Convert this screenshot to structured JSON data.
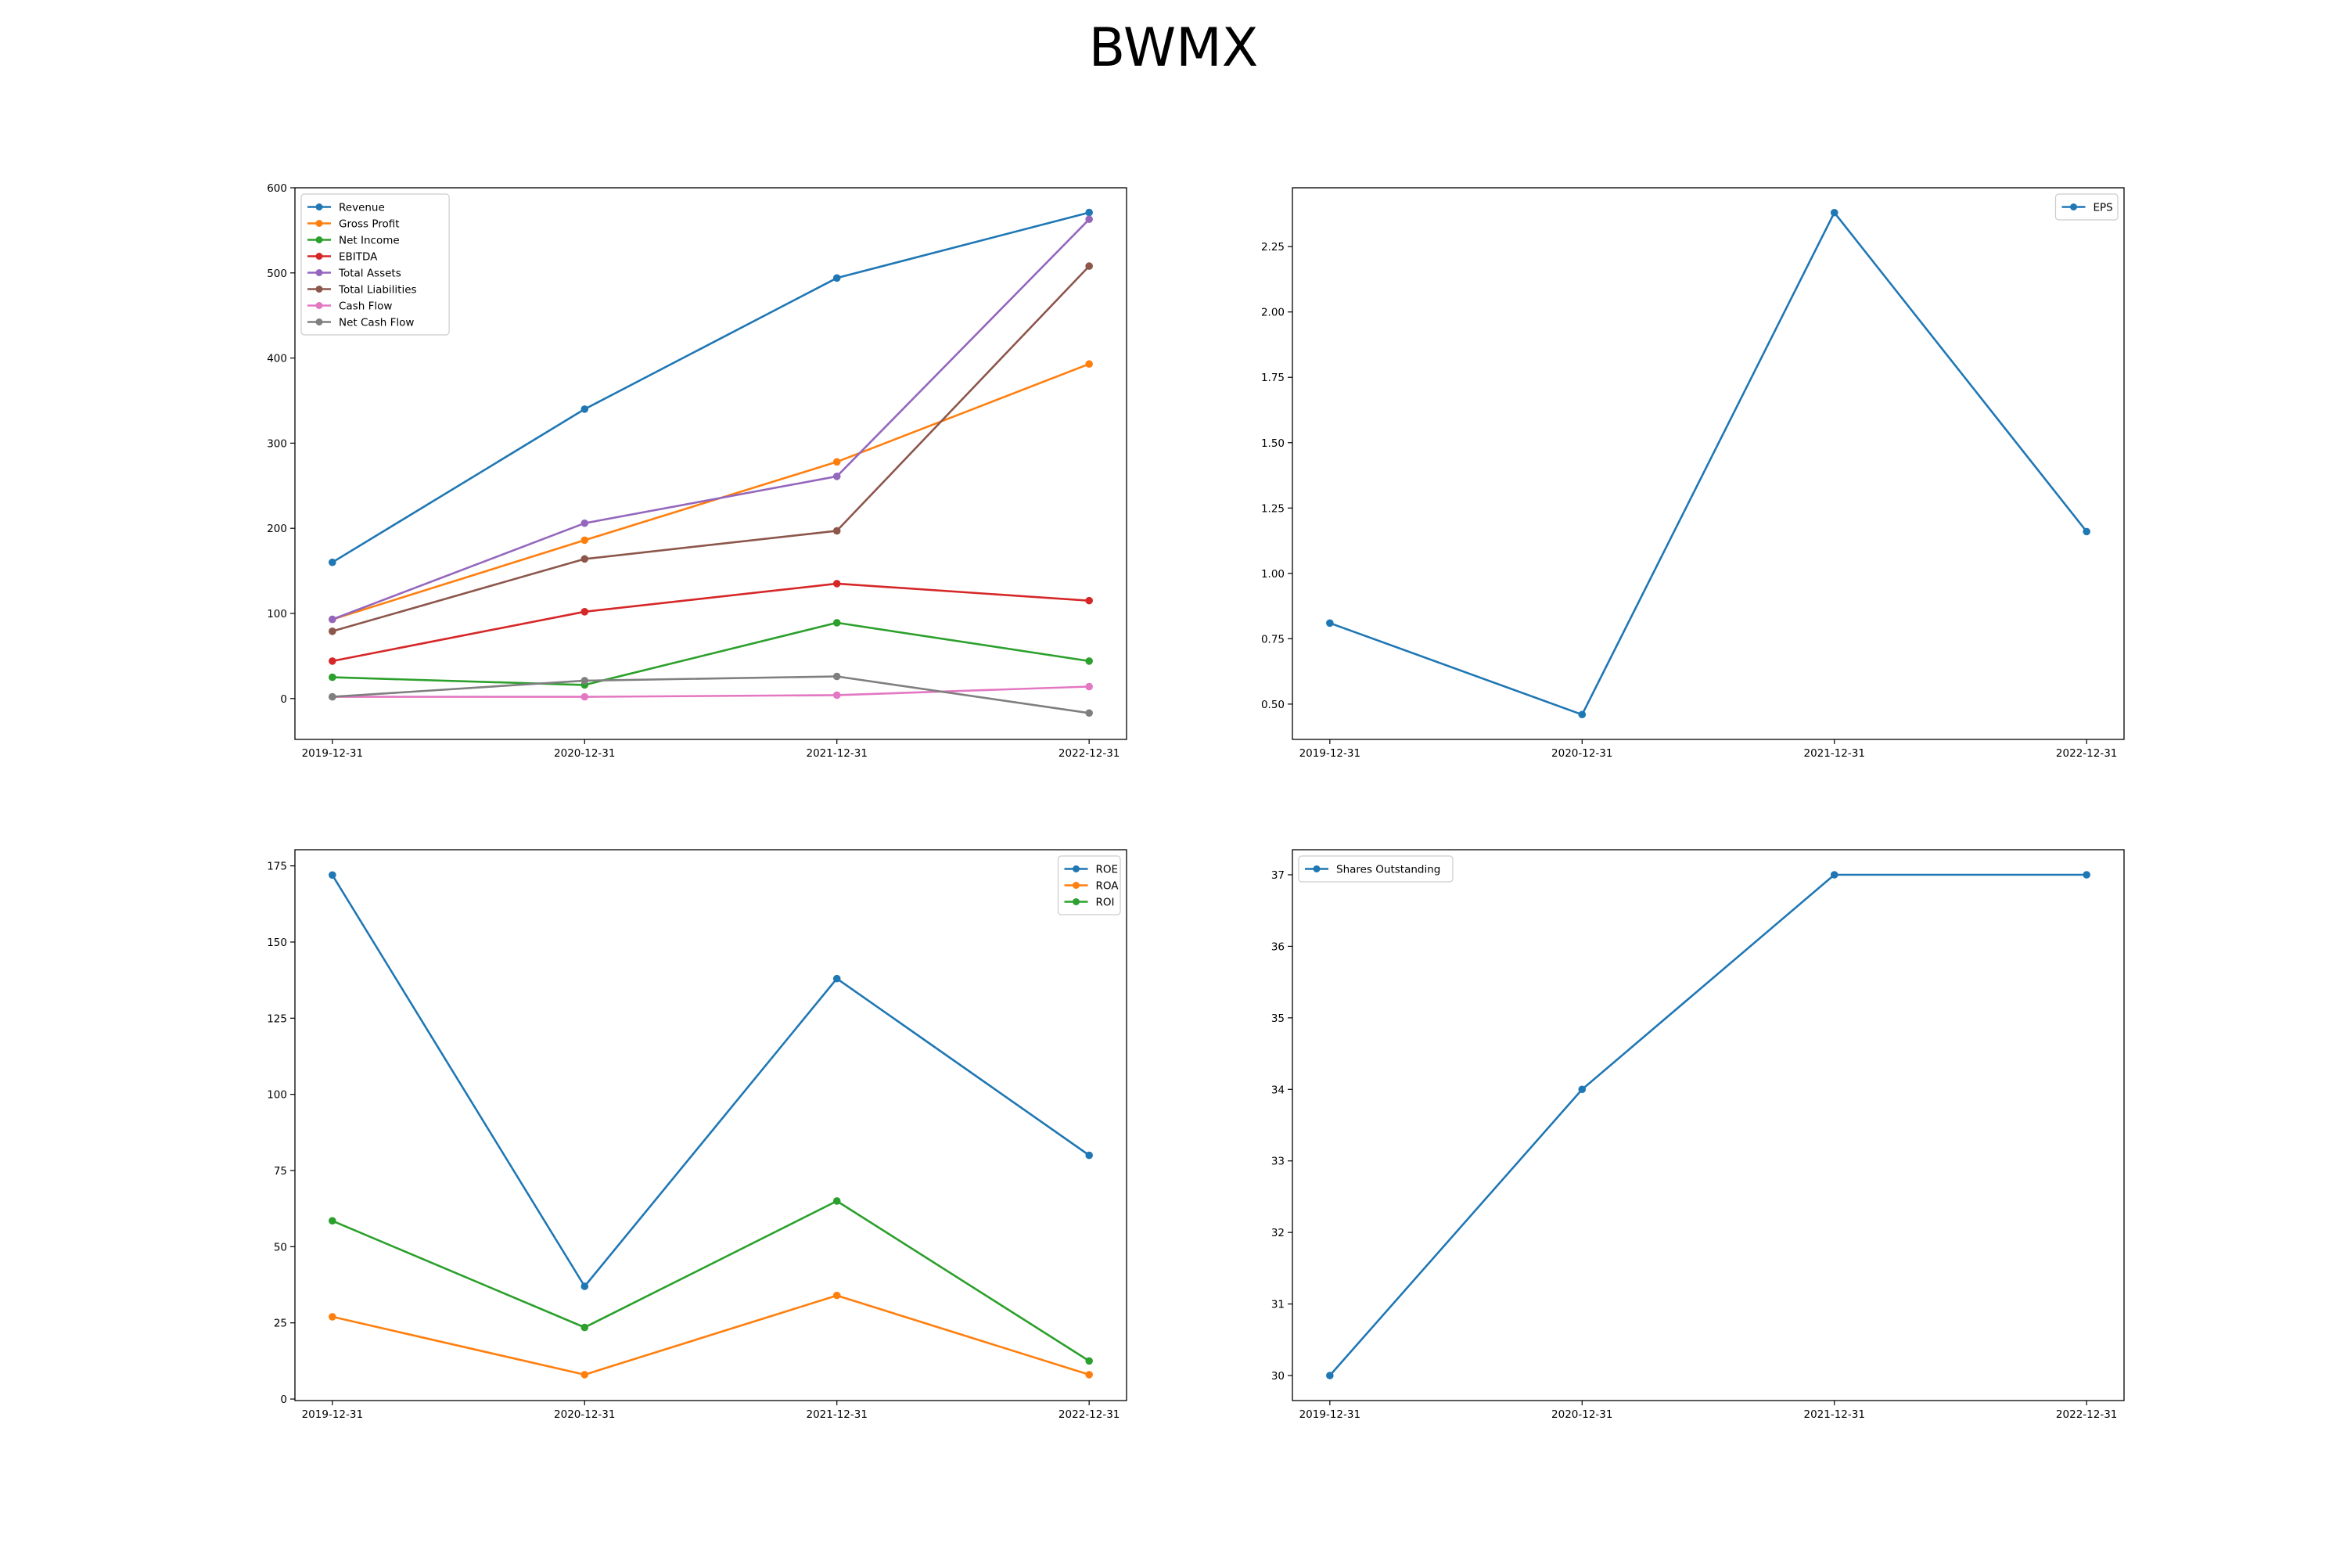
{
  "figure": {
    "title": "BWMX"
  },
  "chart_data": [
    {
      "type": "line",
      "x": [
        "2019-12-31",
        "2020-12-31",
        "2021-12-31",
        "2022-12-31"
      ],
      "ylim": [
        -48,
        600
      ],
      "yticks": [
        0,
        100,
        200,
        300,
        400,
        500,
        600
      ],
      "legend_position": "upper-left",
      "grid": false,
      "series": [
        {
          "name": "Revenue",
          "color": "#1f77b4",
          "values": [
            160,
            340,
            494,
            571
          ]
        },
        {
          "name": "Gross Profit",
          "color": "#ff7f0e",
          "values": [
            93,
            186,
            278,
            393
          ]
        },
        {
          "name": "Net Income",
          "color": "#2ca02c",
          "values": [
            25,
            16,
            89,
            44
          ]
        },
        {
          "name": "EBITDA",
          "color": "#d62728",
          "values": [
            44,
            102,
            135,
            115
          ]
        },
        {
          "name": "Total Assets",
          "color": "#9467bd",
          "values": [
            93,
            206,
            261,
            563
          ]
        },
        {
          "name": "Total Liabilities",
          "color": "#8c564b",
          "values": [
            79,
            164,
            197,
            508
          ]
        },
        {
          "name": "Cash Flow",
          "color": "#e377c2",
          "values": [
            2,
            2,
            4,
            14
          ]
        },
        {
          "name": "Net Cash Flow",
          "color": "#7f7f7f",
          "values": [
            2,
            21,
            26,
            -17
          ]
        }
      ]
    },
    {
      "type": "line",
      "x": [
        "2019-12-31",
        "2020-12-31",
        "2021-12-31",
        "2022-12-31"
      ],
      "ylim": [
        0.365,
        2.475
      ],
      "yticks": [
        0.5,
        0.75,
        1.0,
        1.25,
        1.5,
        1.75,
        2.0,
        2.25
      ],
      "ytick_labels": [
        "0.50",
        "0.75",
        "1.00",
        "1.25",
        "1.50",
        "1.75",
        "2.00",
        "2.25"
      ],
      "legend_position": "upper-right",
      "grid": false,
      "series": [
        {
          "name": "EPS",
          "color": "#1f77b4",
          "values": [
            0.81,
            0.46,
            2.38,
            1.16
          ]
        }
      ]
    },
    {
      "type": "line",
      "x": [
        "2019-12-31",
        "2020-12-31",
        "2021-12-31",
        "2022-12-31"
      ],
      "ylim": [
        -0.5,
        180.3
      ],
      "yticks": [
        0,
        25,
        50,
        75,
        100,
        125,
        150,
        175
      ],
      "legend_position": "upper-right",
      "grid": false,
      "series": [
        {
          "name": "ROE",
          "color": "#1f77b4",
          "values": [
            172,
            37,
            138,
            80
          ]
        },
        {
          "name": "ROA",
          "color": "#ff7f0e",
          "values": [
            27,
            8,
            34,
            8
          ]
        },
        {
          "name": "ROI",
          "color": "#2ca02c",
          "values": [
            58.5,
            23.5,
            65,
            12.5
          ]
        }
      ]
    },
    {
      "type": "line",
      "x": [
        "2019-12-31",
        "2020-12-31",
        "2021-12-31",
        "2022-12-31"
      ],
      "ylim": [
        29.65,
        37.35
      ],
      "yticks": [
        30,
        31,
        32,
        33,
        34,
        35,
        36,
        37
      ],
      "legend_position": "upper-left",
      "grid": false,
      "series": [
        {
          "name": "Shares Outstanding",
          "color": "#1f77b4",
          "values": [
            30,
            34,
            37,
            37
          ]
        }
      ]
    }
  ]
}
